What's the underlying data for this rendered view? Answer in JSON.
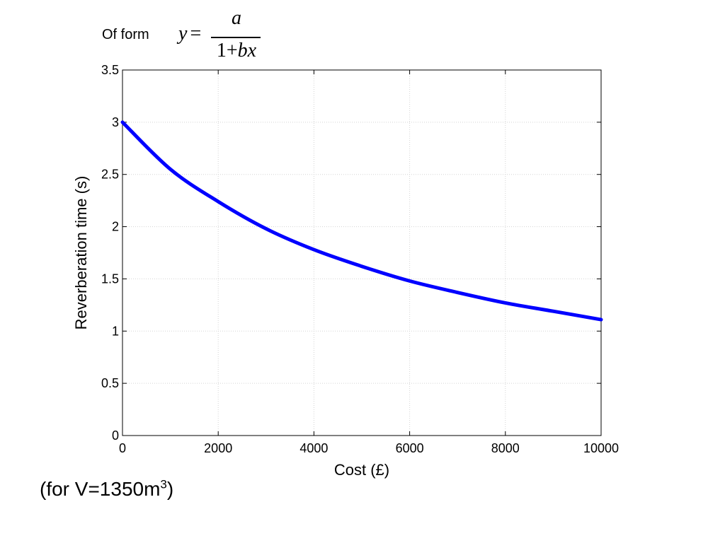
{
  "formula": {
    "label": "Of form",
    "lhs": "y",
    "equals": "=",
    "numerator": "a",
    "denominator_const": "1+",
    "denominator_var": "bx"
  },
  "note": {
    "text": "(for V=1350m",
    "superscript": "3",
    "close": ")"
  },
  "chart_data": {
    "type": "line",
    "title": "",
    "xlabel": "Cost (£)",
    "ylabel": "Reverberation time (s)",
    "xlim": [
      0,
      10000
    ],
    "ylim": [
      0,
      3.5
    ],
    "xticks": [
      0,
      2000,
      4000,
      6000,
      8000,
      10000
    ],
    "yticks": [
      0,
      0.5,
      1,
      1.5,
      2,
      2.5,
      3,
      3.5
    ],
    "grid": true,
    "line_color": "#0000ff",
    "series": [
      {
        "x": [
          0,
          1000,
          2000,
          3000,
          4000,
          5000,
          6000,
          7000,
          8000,
          9000,
          10000
        ],
        "y": [
          3.0,
          2.55,
          2.24,
          1.98,
          1.78,
          1.62,
          1.48,
          1.37,
          1.27,
          1.19,
          1.11
        ]
      }
    ]
  }
}
